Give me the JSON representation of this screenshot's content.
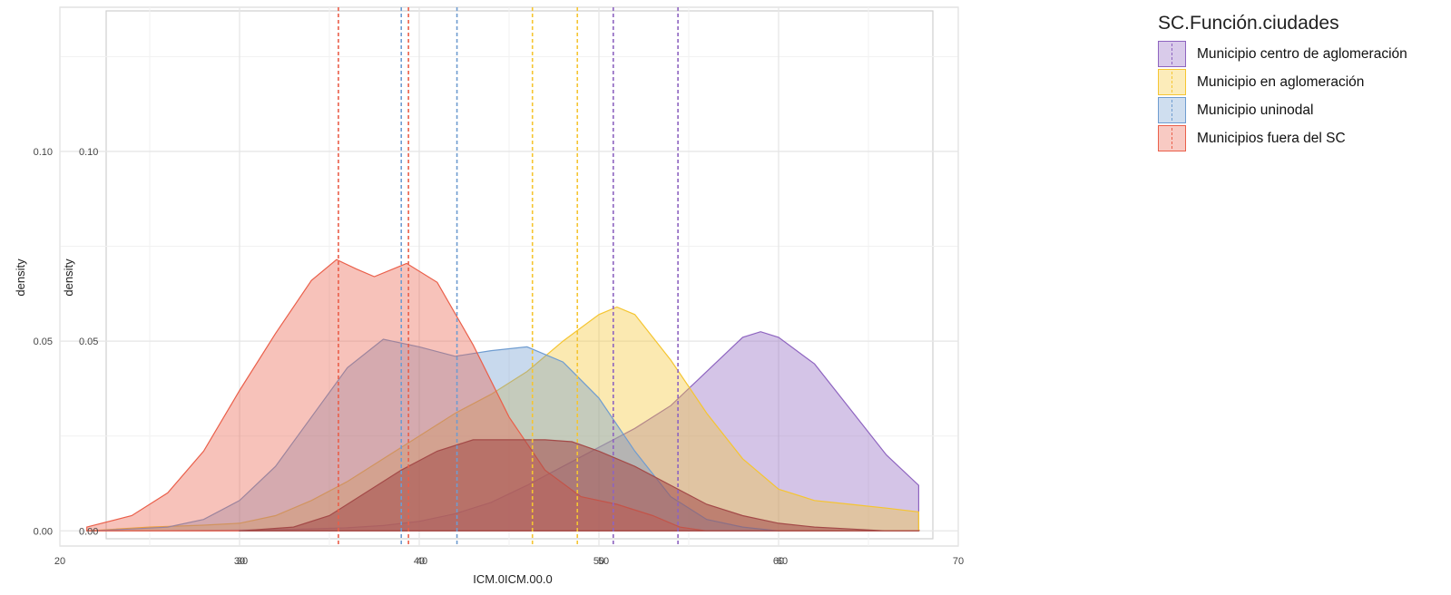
{
  "chart_data": {
    "type": "area",
    "xlabel": "ICM.0ICM.00.0",
    "ylabel": "density",
    "xlim": [
      20,
      70
    ],
    "ylim": [
      -0.004,
      0.138
    ],
    "x_ticks": [
      20,
      30,
      40,
      50,
      60,
      70
    ],
    "x_tick_labels": [
      "20",
      "30",
      "40",
      "50",
      "60",
      "70"
    ],
    "y_ticks": [
      0.0,
      0.05,
      0.1
    ],
    "y_tick_labels": [
      "0.00",
      "0.05",
      "0.10"
    ],
    "inset_x_tick_labels": [
      "30",
      "40",
      "50",
      "60"
    ],
    "inset_y_tick_labels": [
      "0.00",
      "0.05",
      "0.10"
    ],
    "inset_ylabel": "density",
    "grid": true,
    "legend_position": "right",
    "legend_title": "SC.Función.ciudades",
    "series": [
      {
        "name": "Municipio centro de aglomeración",
        "color": "#8e64c0",
        "x": [
          24,
          30,
          33,
          36,
          38,
          40,
          42,
          44,
          46,
          48,
          50,
          52,
          54,
          56,
          58,
          59,
          60,
          62,
          64,
          66,
          67.8
        ],
        "y": [
          0,
          0.0002,
          0.0004,
          0.0008,
          0.0014,
          0.0025,
          0.0045,
          0.0075,
          0.012,
          0.017,
          0.022,
          0.027,
          0.033,
          0.042,
          0.051,
          0.0525,
          0.051,
          0.044,
          0.032,
          0.02,
          0.012
        ],
        "mean_lines": [
          50.8,
          54.4
        ]
      },
      {
        "name": "Municipio en aglomeración",
        "color": "#f5c531",
        "x": [
          21.5,
          25,
          28,
          30,
          32,
          34,
          36,
          38,
          40,
          42,
          44,
          46,
          48,
          50,
          51,
          52,
          54,
          56,
          58,
          60,
          62,
          64,
          66,
          67.8
        ],
        "y": [
          0,
          0.001,
          0.0015,
          0.002,
          0.004,
          0.008,
          0.013,
          0.019,
          0.025,
          0.031,
          0.036,
          0.042,
          0.05,
          0.057,
          0.059,
          0.057,
          0.045,
          0.031,
          0.019,
          0.011,
          0.008,
          0.007,
          0.006,
          0.005
        ],
        "mean_lines": [
          46.3,
          48.8
        ]
      },
      {
        "name": "Municipio uninodal",
        "color": "#6f9cd0",
        "x": [
          21.5,
          24,
          26,
          28,
          30,
          32,
          34,
          36,
          38,
          40,
          42,
          44,
          46,
          48,
          50,
          52,
          54,
          56,
          58,
          60
        ],
        "y": [
          0,
          0.0005,
          0.001,
          0.003,
          0.008,
          0.017,
          0.03,
          0.043,
          0.0505,
          0.0485,
          0.046,
          0.0475,
          0.0485,
          0.0445,
          0.035,
          0.021,
          0.009,
          0.003,
          0.001,
          0
        ],
        "mean_lines": [
          39.0,
          42.1
        ]
      },
      {
        "name": "Municipios fuera del SC",
        "color": "#ea5f4a",
        "x": [
          21.5,
          24,
          26,
          28,
          30,
          32,
          34,
          35.4,
          36.5,
          37.5,
          39.3,
          41,
          43,
          45,
          47,
          49,
          51,
          53,
          54.5,
          56,
          58,
          60,
          62,
          64,
          66,
          67.8
        ],
        "y": [
          0.001,
          0.004,
          0.01,
          0.021,
          0.037,
          0.052,
          0.066,
          0.0715,
          0.069,
          0.067,
          0.0705,
          0.0655,
          0.049,
          0.03,
          0.016,
          0.009,
          0.007,
          0.004,
          0.001,
          0,
          0,
          0,
          0,
          0,
          0,
          0
        ],
        "mean_lines": [
          35.5,
          39.4
        ]
      },
      {
        "name": "",
        "color": "#a34a48",
        "x": [
          30,
          33,
          35,
          37,
          39,
          41,
          43,
          45,
          47,
          48.5,
          50,
          52,
          54,
          56,
          58,
          60,
          62,
          64,
          66,
          67.8
        ],
        "y": [
          0,
          0.001,
          0.004,
          0.01,
          0.016,
          0.021,
          0.024,
          0.024,
          0.024,
          0.0235,
          0.021,
          0.017,
          0.012,
          0.007,
          0.004,
          0.002,
          0.001,
          0.0005,
          0,
          0
        ],
        "mean_lines": []
      }
    ]
  }
}
